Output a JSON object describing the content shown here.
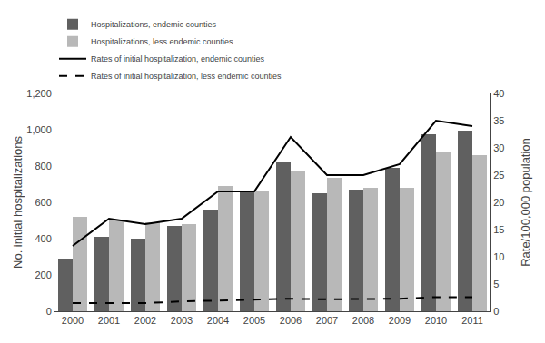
{
  "chart_data": {
    "type": "bar",
    "categories": [
      2000,
      2001,
      2002,
      2003,
      2004,
      2005,
      2006,
      2007,
      2008,
      2009,
      2010,
      2011
    ],
    "series": [
      {
        "name": "Hospitalizations, endemic counties",
        "type": "bar",
        "color": "#606060",
        "values": [
          290,
          410,
          400,
          470,
          560,
          660,
          820,
          650,
          670,
          790,
          975,
          995
        ]
      },
      {
        "name": "Hospitalizations, less endemic counties",
        "type": "bar",
        "color": "#b8b8b8",
        "values": [
          520,
          500,
          490,
          480,
          690,
          660,
          770,
          735,
          680,
          680,
          880,
          860
        ]
      },
      {
        "name": "Rates of initial hospitalization, endemic counties",
        "type": "line",
        "color": "#000000",
        "line_style": "solid",
        "axis": "y2",
        "values": [
          12.0,
          17.0,
          16.0,
          17.0,
          22.0,
          22.0,
          32.0,
          25.0,
          25.0,
          27.0,
          35.0,
          34.0
        ]
      },
      {
        "name": "Rates of initial hospitalization, less endemic counties",
        "type": "line",
        "color": "#000000",
        "line_style": "dashed",
        "axis": "y2",
        "values": [
          1.5,
          1.5,
          1.5,
          1.8,
          2.0,
          2.2,
          2.3,
          2.2,
          2.2,
          2.3,
          2.6,
          2.6
        ]
      }
    ],
    "ylabel": "No. initial hospitalizations",
    "y2label": "Rate/100,000 population",
    "ylim": [
      0,
      1200
    ],
    "yticks": [
      0,
      200,
      400,
      600,
      800,
      {
        "value": 1000,
        "label": "1,000"
      },
      {
        "value": 1200,
        "label": "1,200"
      }
    ],
    "y2lim": [
      0,
      40
    ],
    "y2ticks": [
      0,
      5,
      10,
      15,
      20,
      25,
      30,
      35,
      40
    ],
    "grid": false,
    "legend": "upper left"
  }
}
